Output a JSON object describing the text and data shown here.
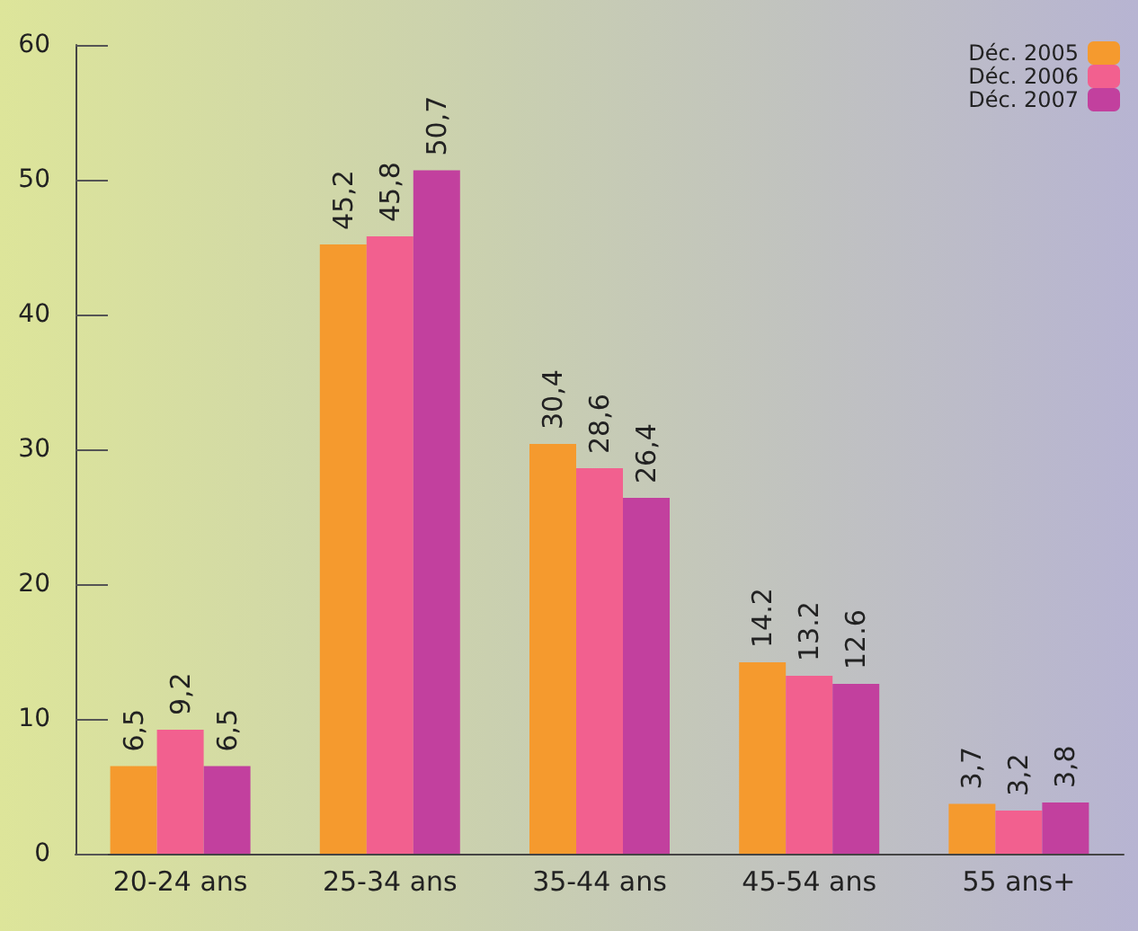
{
  "chart_data": {
    "type": "bar",
    "categories": [
      "20-24 ans",
      "25-34 ans",
      "35-44 ans",
      "45-54 ans",
      "55 ans+"
    ],
    "series": [
      {
        "name": "Déc. 2005",
        "color": "#f59a2e",
        "values": [
          6.5,
          45.2,
          30.4,
          14.2,
          3.7
        ],
        "value_labels": [
          "6,5",
          "45,2",
          "30,4",
          "14.2",
          "3,7"
        ]
      },
      {
        "name": "Déc. 2006",
        "color": "#f2608f",
        "values": [
          9.2,
          45.8,
          28.6,
          13.2,
          3.2
        ],
        "value_labels": [
          "9,2",
          "45,8",
          "28,6",
          "13.2",
          "3,2"
        ]
      },
      {
        "name": "Déc. 2007",
        "color": "#c2409e",
        "values": [
          6.5,
          50.7,
          26.4,
          12.6,
          3.8
        ],
        "value_labels": [
          "6,5",
          "50,7",
          "26,4",
          "12.6",
          "3,8"
        ]
      }
    ],
    "ylim": [
      0,
      60
    ],
    "yticks": [
      0,
      10,
      20,
      30,
      40,
      50,
      60
    ],
    "grid": false,
    "legend": "top right"
  }
}
